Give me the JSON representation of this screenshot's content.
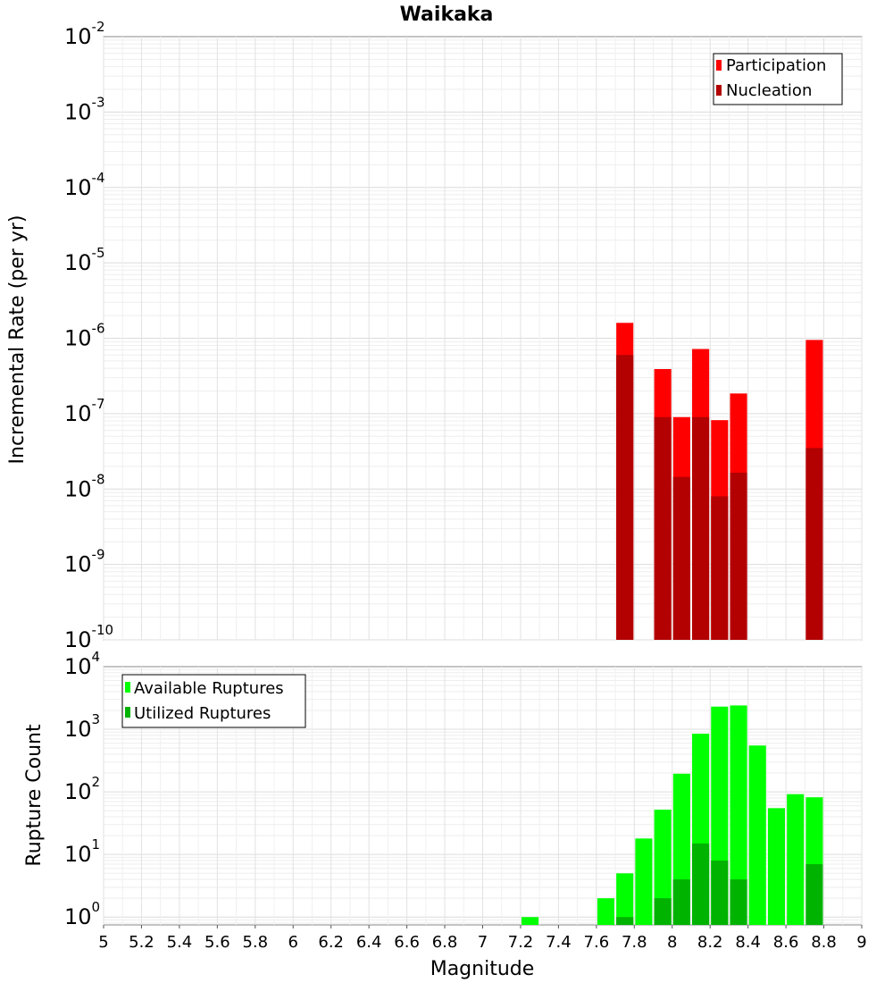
{
  "title": "Waikaka",
  "chart_data": [
    {
      "type": "bar",
      "ylabel": "Incremental Rate (per yr)",
      "yscale": "log",
      "ylim": [
        1e-10,
        0.01
      ],
      "xlim": [
        5,
        9
      ],
      "yticks": [
        "10^-10",
        "10^-9",
        "10^-8",
        "10^-7",
        "10^-6",
        "10^-5",
        "10^-4",
        "10^-3",
        "10^-2"
      ],
      "grid": true,
      "legend_position": "top-right",
      "series": [
        {
          "name": "Participation",
          "color": "#ff0000",
          "x": [
            7.75,
            7.95,
            8.05,
            8.15,
            8.25,
            8.35,
            8.75
          ],
          "values": [
            1.6e-06,
            3.9e-07,
            9e-08,
            7.2e-07,
            8.2e-08,
            1.85e-07,
            9.5e-07
          ]
        },
        {
          "name": "Nucleation",
          "color": "#b30000",
          "x": [
            7.75,
            7.95,
            8.05,
            8.15,
            8.25,
            8.35,
            8.75
          ],
          "values": [
            6e-07,
            9e-08,
            1.45e-08,
            9e-08,
            8e-09,
            1.65e-08,
            3.5e-08
          ]
        }
      ]
    },
    {
      "type": "bar",
      "xlabel": "Magnitude",
      "ylabel": "Rupture Count",
      "yscale": "log",
      "ylim": [
        0.75,
        10000
      ],
      "xlim": [
        5,
        9
      ],
      "xticks": [
        "5",
        "5.2",
        "5.4",
        "5.6",
        "5.8",
        "6",
        "6.2",
        "6.4",
        "6.6",
        "6.8",
        "7",
        "7.2",
        "7.4",
        "7.6",
        "7.8",
        "8",
        "8.2",
        "8.4",
        "8.6",
        "8.8",
        "9"
      ],
      "yticks": [
        "10^0",
        "10^1",
        "10^2",
        "10^3",
        "10^4"
      ],
      "grid": true,
      "legend_position": "top-left",
      "series": [
        {
          "name": "Available Ruptures",
          "color": "#00ff00",
          "x": [
            7.25,
            7.65,
            7.75,
            7.85,
            7.95,
            8.05,
            8.15,
            8.25,
            8.35,
            8.45,
            8.55,
            8.65,
            8.75
          ],
          "values": [
            1,
            2,
            5,
            18,
            52,
            195,
            850,
            2300,
            2400,
            550,
            55,
            92,
            82
          ]
        },
        {
          "name": "Utilized Ruptures",
          "color": "#00b300",
          "x": [
            7.75,
            7.95,
            8.05,
            8.15,
            8.25,
            8.35,
            8.75
          ],
          "values": [
            1,
            2,
            4,
            15,
            8,
            4,
            7
          ]
        }
      ]
    }
  ]
}
